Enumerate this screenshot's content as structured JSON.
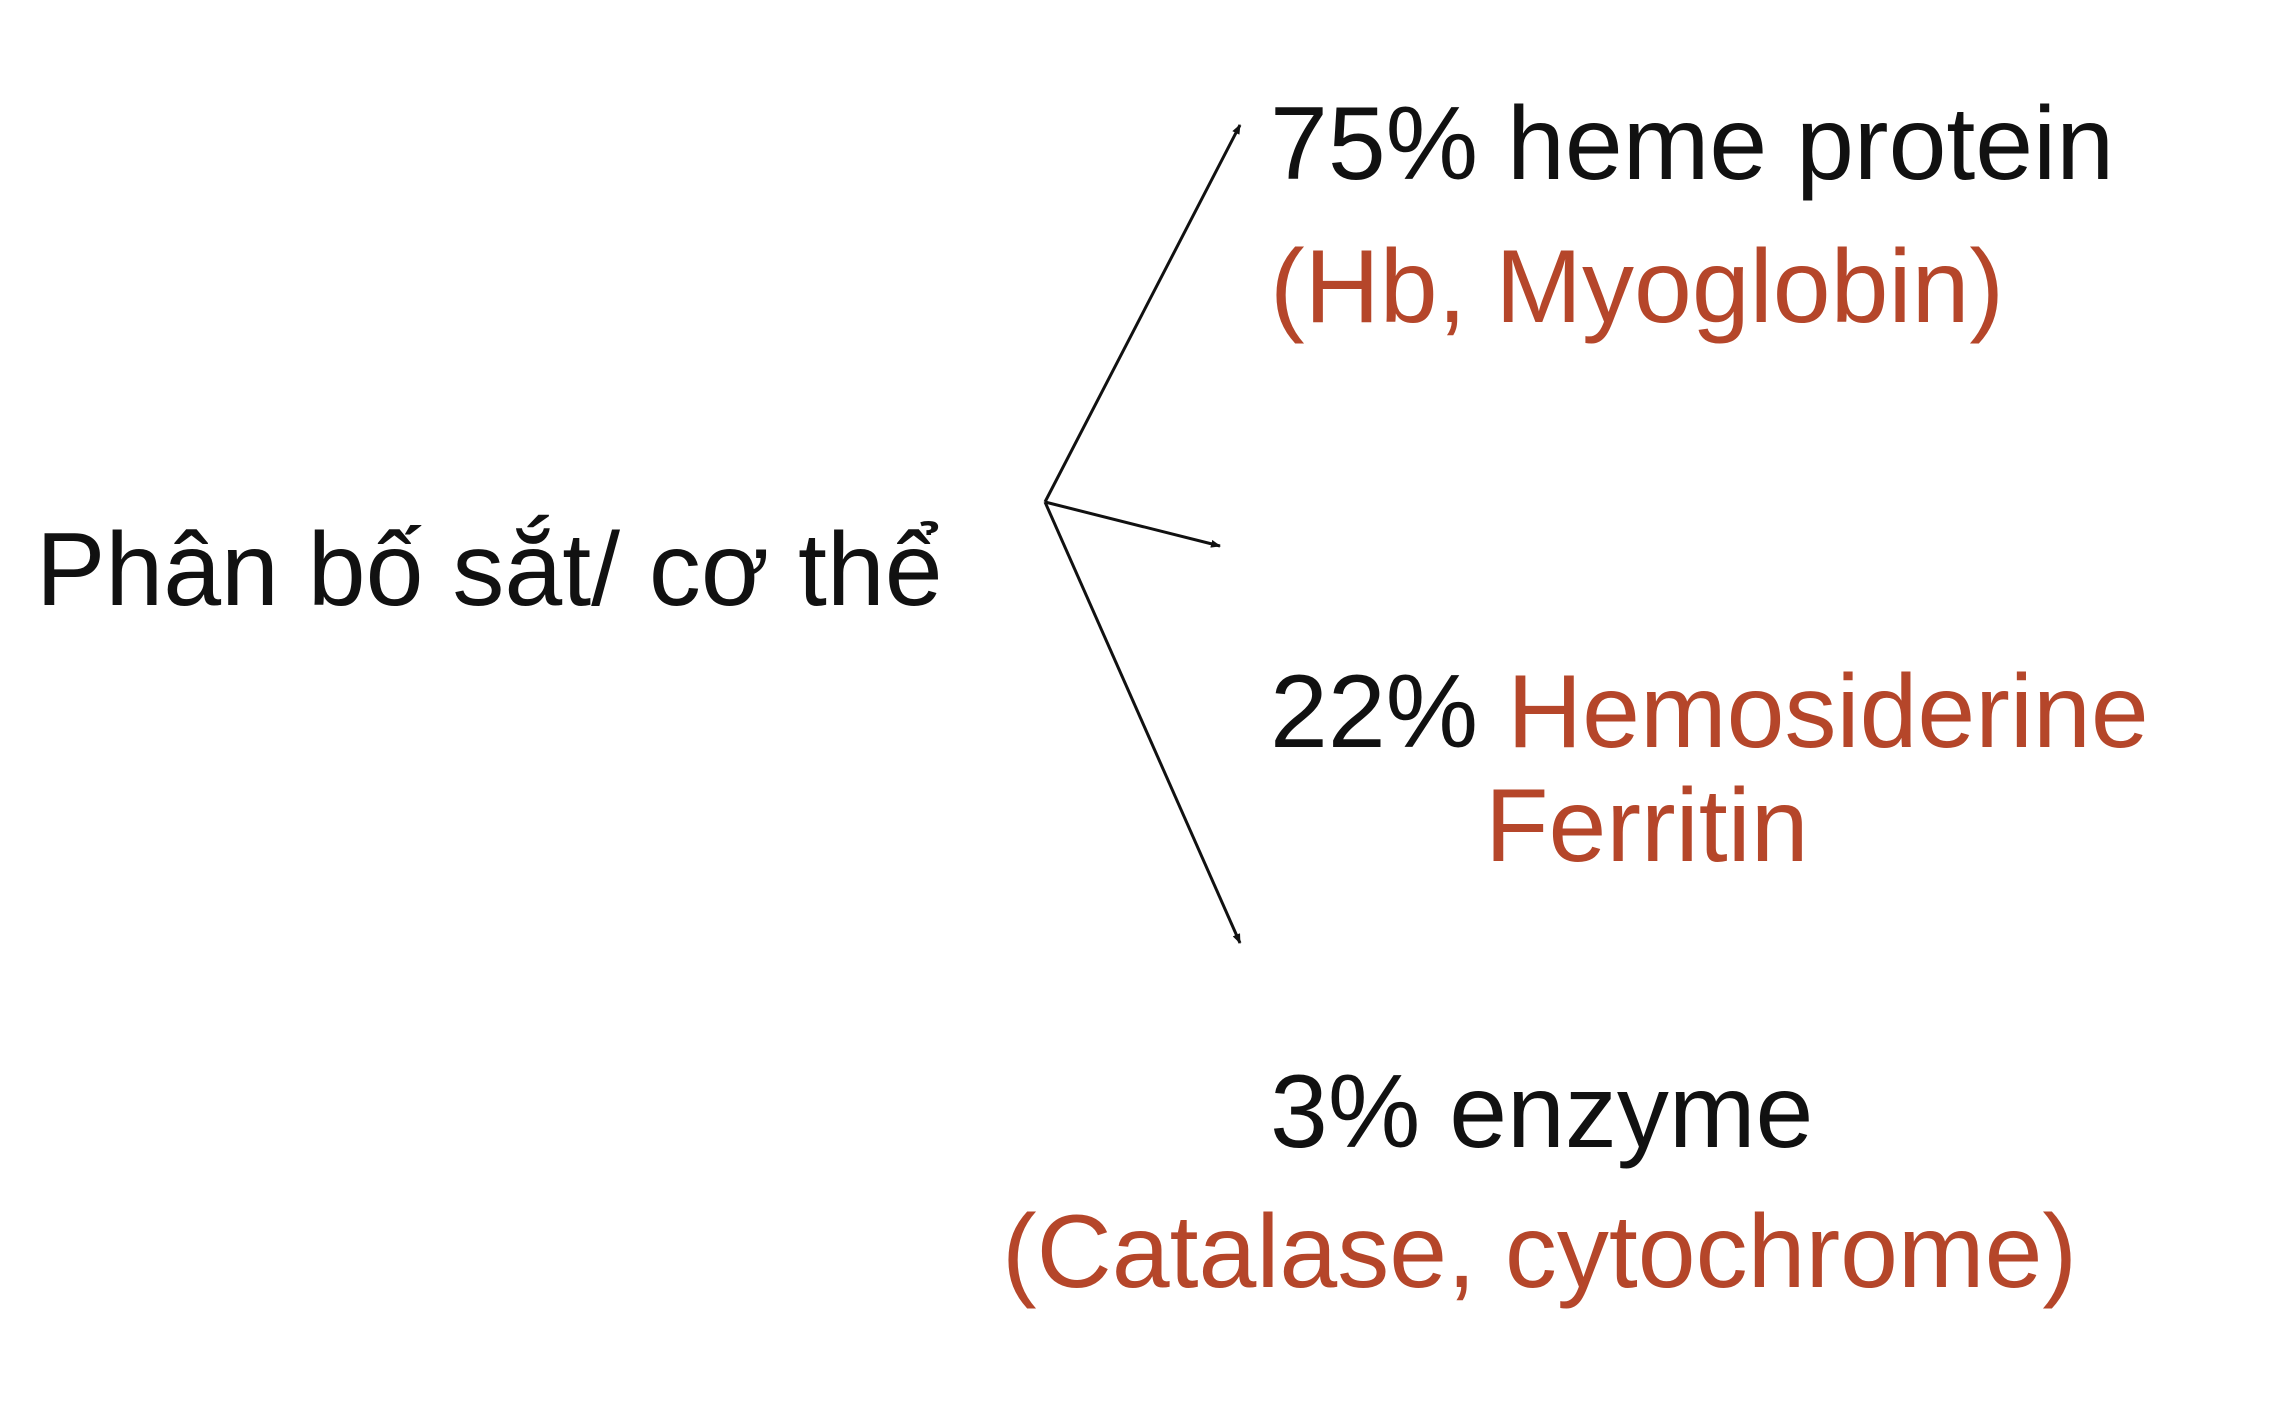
{
  "source": {
    "label": "Phân bố sắt/ cơ thể"
  },
  "branches": [
    {
      "percent_text": "75% heme protein",
      "examples": "(Hb, Myoglobin)"
    },
    {
      "percent_text": "22%",
      "examples_line1": "Hemosiderine",
      "examples_line2": "Ferritin"
    },
    {
      "percent_text": "3% enzyme",
      "examples": "(Catalase, cytochrome)"
    }
  ],
  "colors": {
    "text": "#111111",
    "accent": "#b5462a",
    "arrow": "#111111"
  }
}
